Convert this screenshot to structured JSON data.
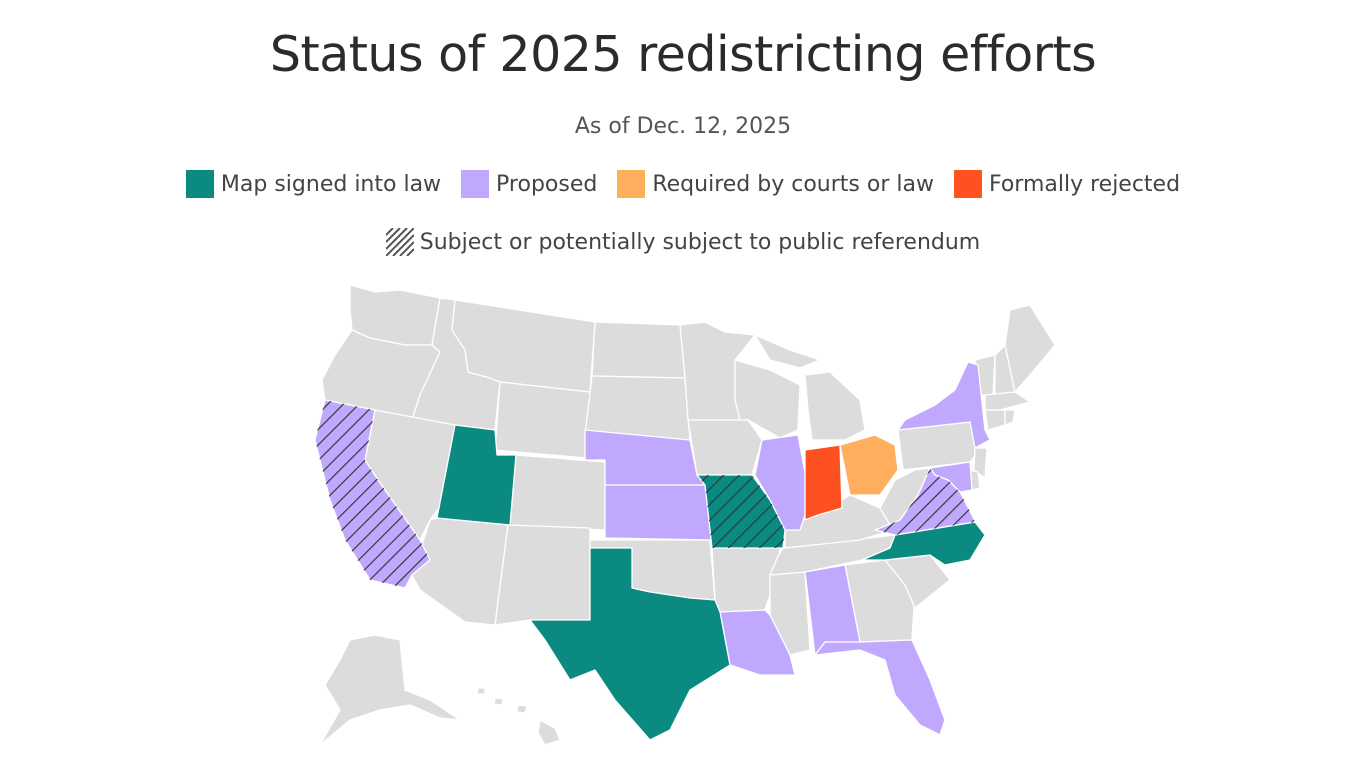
{
  "title": "Status of 2025 redistricting efforts",
  "subtitle": "As of Dec. 12, 2025",
  "legend": [
    {
      "label": "Map signed into law",
      "color": "#0a8a80"
    },
    {
      "label": "Proposed",
      "color": "#c1a8ff"
    },
    {
      "label": "Required by courts or law",
      "color": "#ffae5e"
    },
    {
      "label": "Formally rejected",
      "color": "#ff5022"
    }
  ],
  "referendum_label": "Subject or potentially subject to public referendum",
  "colors": {
    "default": "#dcdcdc",
    "signed": "#0a8a80",
    "proposed": "#c1a8ff",
    "required": "#ffae5e",
    "rejected": "#ff5022",
    "hatch": "#2f3a3a"
  },
  "states": {
    "signed": [
      "Utah",
      "Texas",
      "Missouri",
      "North Carolina"
    ],
    "proposed": [
      "California",
      "Nebraska",
      "Kansas",
      "Illinois",
      "New York",
      "Maryland",
      "Virginia",
      "Louisiana",
      "Alabama",
      "Florida"
    ],
    "required": [
      "Ohio"
    ],
    "rejected": [
      "Indiana"
    ],
    "referendum": [
      "California",
      "Missouri",
      "Virginia"
    ]
  }
}
